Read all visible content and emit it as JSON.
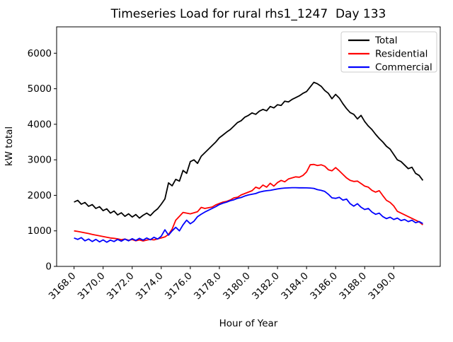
{
  "chart_data": {
    "type": "line",
    "title": "Timeseries Load for rural rhs1_1247  Day 133",
    "xlabel": "Hour of Year",
    "ylabel": "kW total",
    "xlim": [
      3166.8,
      3193.2
    ],
    "ylim": [
      0,
      6742
    ],
    "grid": false,
    "x_ticks": [
      3168,
      3170,
      3172,
      3174,
      3176,
      3178,
      3180,
      3182,
      3184,
      3186,
      3188,
      3190
    ],
    "x_tick_labels": [
      "3168.0",
      "3170.0",
      "3172.0",
      "3174.0",
      "3176.0",
      "3178.0",
      "3180.0",
      "3182.0",
      "3184.0",
      "3186.0",
      "3188.0",
      "3190.0"
    ],
    "y_ticks": [
      0,
      1000,
      2000,
      3000,
      4000,
      5000,
      6000
    ],
    "y_tick_labels": [
      "0",
      "1000",
      "2000",
      "3000",
      "4000",
      "5000",
      "6000"
    ],
    "legend": {
      "position": "upper right",
      "entries": [
        {
          "label": "Total",
          "color": "#000000"
        },
        {
          "label": "Residential",
          "color": "#ff0000"
        },
        {
          "label": "Commercial",
          "color": "#0000ff"
        }
      ]
    },
    "x": [
      3168,
      3168.25,
      3168.5,
      3168.75,
      3169,
      3169.25,
      3169.5,
      3169.75,
      3170,
      3170.25,
      3170.5,
      3170.75,
      3171,
      3171.25,
      3171.5,
      3171.75,
      3172,
      3172.25,
      3172.5,
      3172.75,
      3173,
      3173.25,
      3173.5,
      3173.75,
      3174,
      3174.25,
      3174.5,
      3174.75,
      3175,
      3175.25,
      3175.5,
      3175.75,
      3176,
      3176.25,
      3176.5,
      3176.75,
      3177,
      3177.25,
      3177.5,
      3177.75,
      3178,
      3178.25,
      3178.5,
      3178.75,
      3179,
      3179.25,
      3179.5,
      3179.75,
      3180,
      3180.25,
      3180.5,
      3180.75,
      3181,
      3181.25,
      3181.5,
      3181.75,
      3182,
      3182.25,
      3182.5,
      3182.75,
      3183,
      3183.25,
      3183.5,
      3183.75,
      3184,
      3184.25,
      3184.5,
      3184.75,
      3185,
      3185.25,
      3185.5,
      3185.75,
      3186,
      3186.25,
      3186.5,
      3186.75,
      3187,
      3187.25,
      3187.5,
      3187.75,
      3188,
      3188.25,
      3188.5,
      3188.75,
      3189,
      3189.25,
      3189.5,
      3189.75,
      3190,
      3190.25,
      3190.5,
      3190.75,
      3191,
      3191.25,
      3191.5,
      3191.75,
      3192
    ],
    "series": [
      {
        "name": "Total",
        "color": "#000000",
        "values": [
          1810,
          1860,
          1750,
          1800,
          1690,
          1740,
          1630,
          1680,
          1570,
          1620,
          1500,
          1560,
          1450,
          1510,
          1410,
          1480,
          1390,
          1460,
          1360,
          1440,
          1500,
          1430,
          1540,
          1620,
          1750,
          1900,
          2350,
          2270,
          2450,
          2400,
          2700,
          2620,
          2950,
          3000,
          2900,
          3100,
          3200,
          3300,
          3400,
          3500,
          3620,
          3700,
          3780,
          3850,
          3950,
          4050,
          4100,
          4200,
          4250,
          4320,
          4280,
          4370,
          4420,
          4380,
          4500,
          4460,
          4550,
          4530,
          4650,
          4630,
          4700,
          4750,
          4800,
          4870,
          4920,
          5050,
          5180,
          5140,
          5070,
          4950,
          4870,
          4720,
          4840,
          4740,
          4580,
          4440,
          4330,
          4280,
          4150,
          4250,
          4080,
          3950,
          3850,
          3720,
          3600,
          3500,
          3380,
          3300,
          3150,
          3000,
          2950,
          2850,
          2750,
          2790,
          2620,
          2560,
          2420
        ]
      },
      {
        "name": "Residential",
        "color": "#ff0000",
        "values": [
          1000,
          985,
          965,
          945,
          925,
          900,
          880,
          860,
          840,
          820,
          800,
          790,
          775,
          750,
          770,
          735,
          755,
          720,
          745,
          715,
          740,
          760,
          745,
          775,
          800,
          830,
          900,
          1050,
          1300,
          1410,
          1520,
          1500,
          1480,
          1510,
          1540,
          1660,
          1630,
          1650,
          1670,
          1730,
          1770,
          1810,
          1830,
          1870,
          1930,
          1945,
          2010,
          2050,
          2090,
          2130,
          2230,
          2190,
          2290,
          2230,
          2340,
          2260,
          2360,
          2420,
          2380,
          2460,
          2490,
          2520,
          2510,
          2560,
          2660,
          2860,
          2870,
          2840,
          2860,
          2820,
          2720,
          2690,
          2780,
          2690,
          2590,
          2490,
          2420,
          2390,
          2400,
          2330,
          2260,
          2230,
          2140,
          2090,
          2130,
          1990,
          1860,
          1800,
          1700,
          1550,
          1500,
          1450,
          1400,
          1350,
          1300,
          1250,
          1170
        ]
      },
      {
        "name": "Commercial",
        "color": "#0000ff",
        "values": [
          800,
          760,
          810,
          720,
          770,
          700,
          760,
          690,
          745,
          680,
          740,
          700,
          760,
          710,
          770,
          720,
          780,
          730,
          790,
          740,
          800,
          750,
          820,
          770,
          850,
          1030,
          880,
          1000,
          1100,
          1000,
          1170,
          1300,
          1200,
          1270,
          1400,
          1470,
          1530,
          1580,
          1630,
          1680,
          1740,
          1780,
          1810,
          1850,
          1875,
          1915,
          1940,
          1980,
          2010,
          2030,
          2050,
          2090,
          2115,
          2130,
          2140,
          2160,
          2180,
          2195,
          2205,
          2210,
          2215,
          2215,
          2212,
          2212,
          2210,
          2205,
          2195,
          2160,
          2140,
          2110,
          2030,
          1930,
          1915,
          1945,
          1865,
          1895,
          1765,
          1695,
          1765,
          1665,
          1600,
          1630,
          1530,
          1465,
          1500,
          1400,
          1345,
          1385,
          1320,
          1360,
          1290,
          1320,
          1260,
          1300,
          1230,
          1260,
          1205
        ]
      }
    ]
  }
}
